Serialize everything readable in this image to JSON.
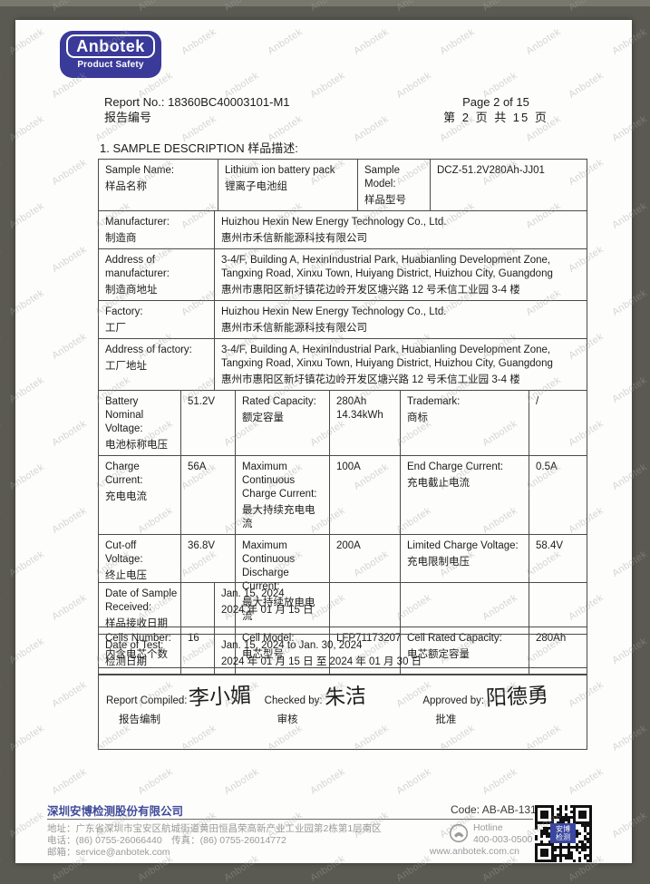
{
  "header": {
    "logo_word": "Anbotek",
    "logo_subtitle": "Product Safety",
    "report_no": "Report No.: 18360BC40003101-M1",
    "report_no_cn": "报告编号",
    "page_en": "Page 2 of 15",
    "page_cn": "第 2 页 共 15 页"
  },
  "section_title": "1. SAMPLE DESCRIPTION 样品描述:",
  "table1": {
    "row1": {
      "l1e": "Sample Name:",
      "l1c": "样品名称",
      "v1e": "Lithium ion battery pack",
      "v1c": "锂离子电池组",
      "l2e": "Sample Model:",
      "l2c": "样品型号",
      "v2": "DCZ-51.2V280Ah-JJ01"
    },
    "row2": {
      "le": "Manufacturer:",
      "lc": "制造商",
      "ve": "Huizhou Hexin New Energy Technology Co., Ltd.",
      "vc": "惠州市禾信新能源科技有限公司"
    },
    "row3": {
      "le": "Address of manufacturer:",
      "lc": "制造商地址",
      "ve": "3-4/F, Building A, HexinIndustrial Park, Huabianling Development Zone, Tangxing Road, Xinxu Town, Huiyang District, Huizhou City, Guangdong",
      "vc": "惠州市惠阳区新圩镇花边岭开发区塘兴路 12 号禾信工业园 3-4 楼"
    },
    "row4": {
      "le": "Factory:",
      "lc": "工厂",
      "ve": "Huizhou Hexin New Energy Technology Co., Ltd.",
      "vc": "惠州市禾信新能源科技有限公司"
    },
    "row5": {
      "le": "Address of factory:",
      "lc": "工厂地址",
      "ve": "3-4/F, Building A, HexinIndustrial Park, Huabianling Development Zone, Tangxing Road, Xinxu Town, Huiyang District, Huizhou City, Guangdong",
      "vc": "惠州市惠阳区新圩镇花边岭开发区塘兴路 12 号禾信工业园 3-4 楼"
    },
    "row6": {
      "l1e": "Battery Nominal Voltage:",
      "l1c": "电池标称电压",
      "v1": "51.2V",
      "l2e": "Rated Capacity:",
      "l2c": "额定容量",
      "v2a": "280Ah",
      "v2b": "14.34kWh",
      "l3e": "Trademark:",
      "l3c": "商标",
      "v3": "/"
    },
    "row7": {
      "l1e": "Charge Current:",
      "l1c": "充电电流",
      "v1": "56A",
      "l2e": "Maximum Continuous Charge Current:",
      "l2c": "最大持续充电电流",
      "v2": "100A",
      "l3e": "End Charge Current:",
      "l3c": "充电截止电流",
      "v3": "0.5A"
    },
    "row8": {
      "l1e": "Cut-off Voltage:",
      "l1c": "终止电压",
      "v1": "36.8V",
      "l2e": "Maximum Continuous Discharge Current:",
      "l2c": "最大持续放电电流",
      "v2": "200A",
      "l3e": "Limited Charge Voltage:",
      "l3c": "充电限制电压",
      "v3": "58.4V"
    },
    "row9": {
      "l1e": "Cells Number:",
      "l1c": "内含电芯个数",
      "v1": "16",
      "l2e": "Cell Model:",
      "l2c": "电芯型号",
      "v2": "LFP71173207",
      "l3e": "Cell Rated Capacity:",
      "l3c": "电芯额定容量",
      "v3": "280Ah"
    }
  },
  "dates": {
    "row1": {
      "le": "Date of Sample Received:",
      "lc": "样品接收日期",
      "ve": "Jan. 15, 2024",
      "vc": "2024 年 01 月 15 日"
    },
    "row2": {
      "le": "Date of Test:",
      "lc": "检测日期",
      "ve": "Jan. 15, 2024 to Jan. 30, 2024",
      "vc": "2024 年 01 月 15 日 至 2024 年 01 月 30 日"
    }
  },
  "signatures": {
    "compiled_label_en": "Report Compiled:",
    "compiled_label_cn": "报告编制",
    "compiled_sign": "李小媚",
    "checked_label_en": "Checked by:",
    "checked_label_cn": "审核",
    "checked_sign": "朱洁",
    "approved_label_en": "Approved by:",
    "approved_label_cn": "批准",
    "approved_sign": "阳德勇"
  },
  "footer": {
    "company_cn": "深圳安博检测股份有限公司",
    "address": "地址：广东省深圳市宝安区航城街道黄田恒昌荣高新产业工业园第2栋第1层南区",
    "tel_fax": "电话：(86) 0755-26066440　传真：(86) 0755-26014772",
    "email": "邮箱：service@anbotek.com",
    "code": "Code: AB-AB-131-a",
    "hotline_label": "Hotline",
    "hotline_number": "400-003-0500",
    "website": "www.anbotek.com.cn",
    "qr_label": "安博检测"
  },
  "watermark": {
    "text": "Anbotek"
  },
  "colors": {
    "logo_blue": "#3a3a99",
    "footer_blue": "#3f4a99",
    "frame_gray": "#5b5a52",
    "stamp_red": "#c23a32"
  }
}
